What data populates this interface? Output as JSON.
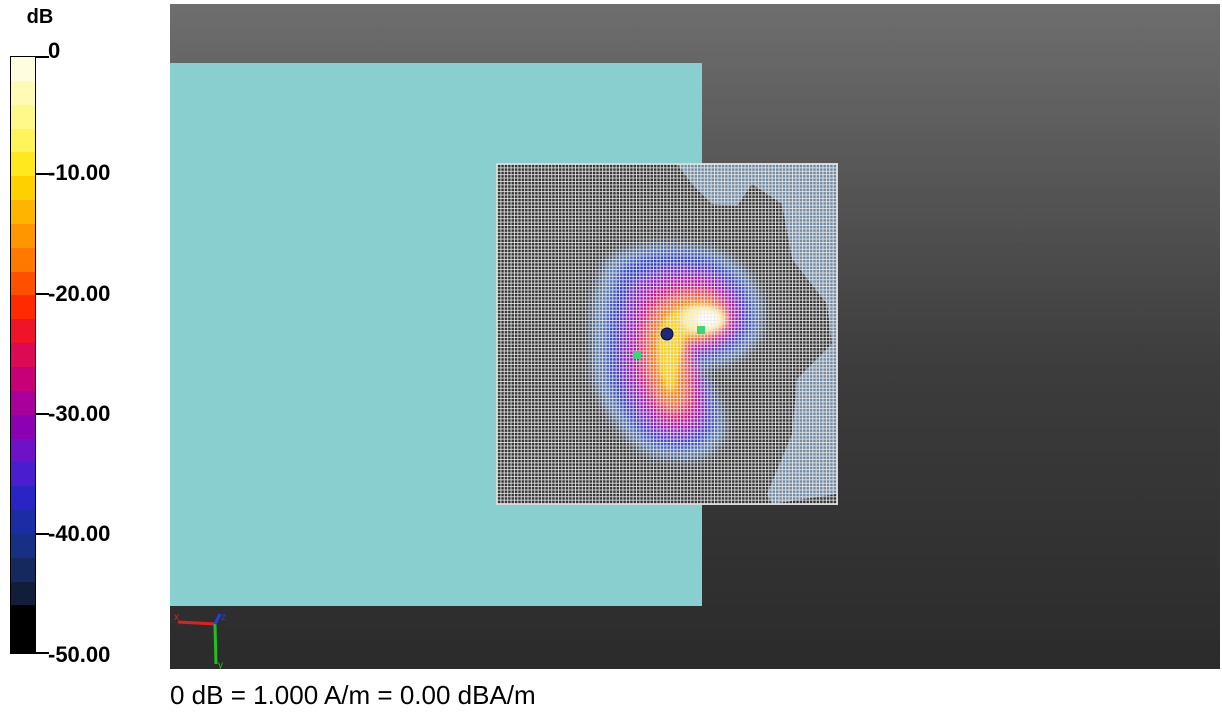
{
  "scale": {
    "unit": "dB",
    "ticks": [
      "0",
      "-10.00",
      "-20.00",
      "-30.00",
      "-40.00",
      "-50.00"
    ],
    "colors": [
      "#fffde0",
      "#fffbb4",
      "#fff98a",
      "#fff45a",
      "#ffe81e",
      "#ffd000",
      "#ffb400",
      "#ff9600",
      "#ff7800",
      "#ff5000",
      "#ff2a00",
      "#f01428",
      "#dc0a55",
      "#c80078",
      "#a8009a",
      "#8c00b4",
      "#6e12c8",
      "#4a1ecf",
      "#2a24c4",
      "#1c2ca4",
      "#183084",
      "#16295f",
      "#101e3a",
      "#000000",
      "#000000"
    ]
  },
  "viewport": {
    "phantom_color": "#89cfcf",
    "axes": {
      "x": "x",
      "y": "y",
      "z": "z"
    }
  },
  "footer": {
    "text": "0 dB = 1.000 A/m = 0.00 dBA/m"
  }
}
